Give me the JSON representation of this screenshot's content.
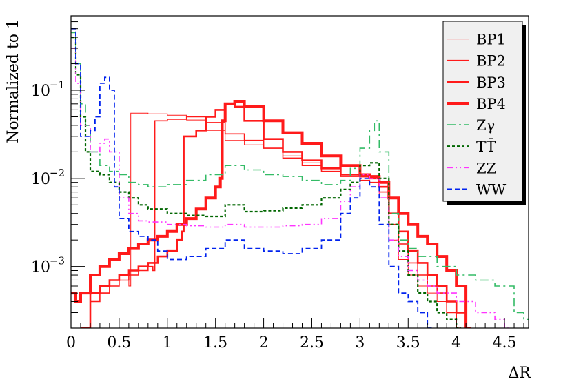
{
  "chart_data": {
    "type": "line",
    "title": "",
    "xlabel": "ΔR",
    "ylabel": "Normalized to 1",
    "x_range": [
      0,
      4.75
    ],
    "y_range": [
      0.0002,
      0.7
    ],
    "y_scale": "log",
    "grid": false,
    "legend_position": "top-right",
    "x_ticks": [
      {
        "value": 0,
        "label": "0"
      },
      {
        "value": 0.5,
        "label": "0.5"
      },
      {
        "value": 1,
        "label": "1"
      },
      {
        "value": 1.5,
        "label": "1.5"
      },
      {
        "value": 2,
        "label": "2"
      },
      {
        "value": 2.5,
        "label": "2.5"
      },
      {
        "value": 3,
        "label": "3"
      },
      {
        "value": 3.5,
        "label": "3.5"
      },
      {
        "value": 4,
        "label": "4"
      },
      {
        "value": 4.5,
        "label": "4.5"
      }
    ],
    "y_ticks": [
      {
        "value": 0.001,
        "base": "10",
        "exp": "−3"
      },
      {
        "value": 0.01,
        "base": "10",
        "exp": "−2"
      },
      {
        "value": 0.1,
        "base": "10",
        "exp": "−1"
      }
    ],
    "series": [
      {
        "name": "BP1",
        "color": "#ff1a1a",
        "width": 1,
        "dash": "",
        "points": [
          [
            0.1,
            0.0002
          ],
          [
            0.2,
            0.0004
          ],
          [
            0.3,
            0.0005
          ],
          [
            0.4,
            0.0006
          ],
          [
            0.5,
            0.0007
          ],
          [
            0.6,
            0.0006
          ],
          [
            0.62,
            0.055
          ],
          [
            0.8,
            0.054
          ],
          [
            1.0,
            0.052
          ],
          [
            1.2,
            0.046
          ],
          [
            1.4,
            0.035
          ],
          [
            1.6,
            0.027
          ],
          [
            1.8,
            0.024
          ],
          [
            2.0,
            0.022
          ],
          [
            2.2,
            0.018
          ],
          [
            2.4,
            0.015
          ],
          [
            2.6,
            0.013
          ],
          [
            2.8,
            0.011
          ],
          [
            3.0,
            0.0095
          ],
          [
            3.1,
            0.009
          ],
          [
            3.2,
            0.006
          ],
          [
            3.3,
            0.002
          ],
          [
            3.4,
            0.0012
          ],
          [
            3.5,
            0.0008
          ],
          [
            3.6,
            0.0006
          ],
          [
            3.7,
            0.0005
          ],
          [
            3.8,
            0.0004
          ],
          [
            3.9,
            0.0003
          ],
          [
            4.0,
            0.0002
          ]
        ]
      },
      {
        "name": "BP2",
        "color": "#ff1a1a",
        "width": 1.6,
        "dash": "",
        "points": [
          [
            0.1,
            0.0002
          ],
          [
            0.2,
            0.0004
          ],
          [
            0.3,
            0.0005
          ],
          [
            0.4,
            0.0006
          ],
          [
            0.5,
            0.0007
          ],
          [
            0.6,
            0.0008
          ],
          [
            0.7,
            0.0009
          ],
          [
            0.8,
            0.001
          ],
          [
            0.85,
            0.0009
          ],
          [
            0.87,
            0.045
          ],
          [
            1.0,
            0.047
          ],
          [
            1.2,
            0.05
          ],
          [
            1.4,
            0.043
          ],
          [
            1.6,
            0.032
          ],
          [
            1.8,
            0.027
          ],
          [
            2.0,
            0.022
          ],
          [
            2.2,
            0.017
          ],
          [
            2.4,
            0.014
          ],
          [
            2.6,
            0.012
          ],
          [
            2.8,
            0.0105
          ],
          [
            3.0,
            0.0095
          ],
          [
            3.1,
            0.009
          ],
          [
            3.2,
            0.007
          ],
          [
            3.3,
            0.003
          ],
          [
            3.4,
            0.0018
          ],
          [
            3.5,
            0.0011
          ],
          [
            3.6,
            0.0008
          ],
          [
            3.7,
            0.0006
          ],
          [
            3.8,
            0.0005
          ],
          [
            3.9,
            0.0003
          ],
          [
            4.0,
            0.0002
          ]
        ]
      },
      {
        "name": "BP3",
        "color": "#ff1a1a",
        "width": 2.6,
        "dash": "",
        "points": [
          [
            0.1,
            0.0002
          ],
          [
            0.2,
            0.0005
          ],
          [
            0.3,
            0.0006
          ],
          [
            0.4,
            0.0007
          ],
          [
            0.5,
            0.0008
          ],
          [
            0.6,
            0.0009
          ],
          [
            0.7,
            0.001
          ],
          [
            0.8,
            0.0011
          ],
          [
            0.9,
            0.0013
          ],
          [
            1.0,
            0.0015
          ],
          [
            1.1,
            0.002
          ],
          [
            1.15,
            0.0025
          ],
          [
            1.17,
            0.03
          ],
          [
            1.3,
            0.035
          ],
          [
            1.4,
            0.05
          ],
          [
            1.5,
            0.06
          ],
          [
            1.6,
            0.07
          ],
          [
            1.7,
            0.065
          ],
          [
            1.8,
            0.045
          ],
          [
            2.0,
            0.028
          ],
          [
            2.2,
            0.02
          ],
          [
            2.4,
            0.016
          ],
          [
            2.6,
            0.013
          ],
          [
            2.8,
            0.011
          ],
          [
            3.0,
            0.0105
          ],
          [
            3.1,
            0.01
          ],
          [
            3.2,
            0.008
          ],
          [
            3.3,
            0.004
          ],
          [
            3.4,
            0.0025
          ],
          [
            3.5,
            0.0015
          ],
          [
            3.6,
            0.0011
          ],
          [
            3.7,
            0.0008
          ],
          [
            3.8,
            0.0006
          ],
          [
            3.9,
            0.0004
          ],
          [
            4.0,
            0.0003
          ],
          [
            4.1,
            0.0002
          ]
        ]
      },
      {
        "name": "BP4",
        "color": "#ff1a1a",
        "width": 4,
        "dash": "",
        "points": [
          [
            0,
            0.0005
          ],
          [
            0.05,
            0.0004
          ],
          [
            0.1,
            0.0005
          ],
          [
            0.2,
            0.0008
          ],
          [
            0.3,
            0.001
          ],
          [
            0.4,
            0.0012
          ],
          [
            0.5,
            0.0014
          ],
          [
            0.6,
            0.0016
          ],
          [
            0.7,
            0.0018
          ],
          [
            0.8,
            0.002
          ],
          [
            0.9,
            0.0022
          ],
          [
            1.0,
            0.0025
          ],
          [
            1.1,
            0.003
          ],
          [
            1.2,
            0.0035
          ],
          [
            1.3,
            0.0045
          ],
          [
            1.4,
            0.006
          ],
          [
            1.5,
            0.008
          ],
          [
            1.55,
            0.01
          ],
          [
            1.57,
            0.045
          ],
          [
            1.6,
            0.07
          ],
          [
            1.7,
            0.075
          ],
          [
            1.8,
            0.065
          ],
          [
            2.0,
            0.045
          ],
          [
            2.2,
            0.033
          ],
          [
            2.4,
            0.025
          ],
          [
            2.6,
            0.018
          ],
          [
            2.8,
            0.014
          ],
          [
            3.0,
            0.011
          ],
          [
            3.1,
            0.0105
          ],
          [
            3.2,
            0.009
          ],
          [
            3.3,
            0.006
          ],
          [
            3.4,
            0.004
          ],
          [
            3.5,
            0.003
          ],
          [
            3.6,
            0.0022
          ],
          [
            3.7,
            0.0018
          ],
          [
            3.8,
            0.0013
          ],
          [
            3.9,
            0.0009
          ],
          [
            4.0,
            0.0006
          ],
          [
            4.1,
            0.0002
          ]
        ]
      },
      {
        "name": "Zγ",
        "color": "#33bb66",
        "width": 1.6,
        "dash": "12,5,3,5",
        "points": [
          [
            0,
            0.45
          ],
          [
            0.05,
            0.2
          ],
          [
            0.1,
            0.07
          ],
          [
            0.15,
            0.04
          ],
          [
            0.2,
            0.02
          ],
          [
            0.3,
            0.014
          ],
          [
            0.4,
            0.012
          ],
          [
            0.5,
            0.011
          ],
          [
            0.6,
            0.009
          ],
          [
            0.7,
            0.0085
          ],
          [
            0.8,
            0.008
          ],
          [
            1.0,
            0.0085
          ],
          [
            1.2,
            0.0095
          ],
          [
            1.4,
            0.011
          ],
          [
            1.6,
            0.014
          ],
          [
            1.8,
            0.0125
          ],
          [
            2.0,
            0.011
          ],
          [
            2.2,
            0.0105
          ],
          [
            2.4,
            0.0095
          ],
          [
            2.6,
            0.0085
          ],
          [
            2.8,
            0.0095
          ],
          [
            2.9,
            0.013
          ],
          [
            3.0,
            0.022
          ],
          [
            3.1,
            0.035
          ],
          [
            3.15,
            0.045
          ],
          [
            3.2,
            0.02
          ],
          [
            3.3,
            0.004
          ],
          [
            3.4,
            0.002
          ],
          [
            3.5,
            0.0016
          ],
          [
            3.6,
            0.0013
          ],
          [
            3.8,
            0.001
          ],
          [
            4.0,
            0.0008
          ],
          [
            4.2,
            0.0007
          ],
          [
            4.4,
            0.0006
          ],
          [
            4.6,
            0.0003
          ],
          [
            4.7,
            0.00025
          ]
        ]
      },
      {
        "name": "TT̄",
        "color": "#006600",
        "width": 2.2,
        "dash": "4,3",
        "points": [
          [
            0,
            0.4
          ],
          [
            0.05,
            0.15
          ],
          [
            0.1,
            0.05
          ],
          [
            0.15,
            0.02
          ],
          [
            0.2,
            0.012
          ],
          [
            0.3,
            0.011
          ],
          [
            0.4,
            0.009
          ],
          [
            0.5,
            0.007
          ],
          [
            0.6,
            0.006
          ],
          [
            0.7,
            0.005
          ],
          [
            0.8,
            0.0045
          ],
          [
            1.0,
            0.004
          ],
          [
            1.2,
            0.0038
          ],
          [
            1.4,
            0.0037
          ],
          [
            1.6,
            0.005
          ],
          [
            1.8,
            0.0042
          ],
          [
            2.0,
            0.0043
          ],
          [
            2.2,
            0.0046
          ],
          [
            2.4,
            0.005
          ],
          [
            2.6,
            0.006
          ],
          [
            2.8,
            0.0075
          ],
          [
            2.9,
            0.009
          ],
          [
            3.0,
            0.014
          ],
          [
            3.1,
            0.015
          ],
          [
            3.2,
            0.01
          ],
          [
            3.3,
            0.003
          ],
          [
            3.4,
            0.0015
          ],
          [
            3.5,
            0.0008
          ],
          [
            3.6,
            0.0005
          ],
          [
            3.7,
            0.0004
          ],
          [
            3.8,
            0.0003
          ],
          [
            3.9,
            0.00025
          ],
          [
            4.0,
            0.0002
          ]
        ]
      },
      {
        "name": "ZZ",
        "color": "#ff33ff",
        "width": 1.6,
        "dash": "8,4,2,4,2,4",
        "points": [
          [
            0,
            0.3
          ],
          [
            0.05,
            0.12
          ],
          [
            0.1,
            0.04
          ],
          [
            0.2,
            0.02
          ],
          [
            0.3,
            0.025
          ],
          [
            0.35,
            0.028
          ],
          [
            0.4,
            0.02
          ],
          [
            0.5,
            0.006
          ],
          [
            0.6,
            0.004
          ],
          [
            0.7,
            0.0033
          ],
          [
            0.8,
            0.0032
          ],
          [
            1.0,
            0.003
          ],
          [
            1.2,
            0.0029
          ],
          [
            1.4,
            0.0028
          ],
          [
            1.6,
            0.003
          ],
          [
            1.8,
            0.0028
          ],
          [
            2.0,
            0.0028
          ],
          [
            2.2,
            0.0029
          ],
          [
            2.4,
            0.003
          ],
          [
            2.6,
            0.0035
          ],
          [
            2.8,
            0.0055
          ],
          [
            2.9,
            0.008
          ],
          [
            3.0,
            0.011
          ],
          [
            3.1,
            0.01
          ],
          [
            3.2,
            0.006
          ],
          [
            3.3,
            0.002
          ],
          [
            3.4,
            0.0013
          ],
          [
            3.5,
            0.0009
          ],
          [
            3.6,
            0.0007
          ],
          [
            3.7,
            0.0006
          ],
          [
            3.8,
            0.0005
          ],
          [
            4.0,
            0.0004
          ],
          [
            4.2,
            0.0003
          ],
          [
            4.4,
            0.00025
          ],
          [
            4.5,
            0.0002
          ]
        ]
      },
      {
        "name": "WW",
        "color": "#0022ee",
        "width": 1.8,
        "dash": "7,4",
        "points": [
          [
            0,
            0.5
          ],
          [
            0.05,
            0.2
          ],
          [
            0.1,
            0.03
          ],
          [
            0.15,
            0.03
          ],
          [
            0.2,
            0.035
          ],
          [
            0.25,
            0.05
          ],
          [
            0.3,
            0.12
          ],
          [
            0.35,
            0.14
          ],
          [
            0.4,
            0.1
          ],
          [
            0.45,
            0.008
          ],
          [
            0.5,
            0.0035
          ],
          [
            0.6,
            0.0025
          ],
          [
            0.7,
            0.0022
          ],
          [
            0.8,
            0.002
          ],
          [
            0.9,
            0.0015
          ],
          [
            1.0,
            0.0012
          ],
          [
            1.2,
            0.0013
          ],
          [
            1.4,
            0.0016
          ],
          [
            1.6,
            0.002
          ],
          [
            1.8,
            0.0016
          ],
          [
            2.0,
            0.0015
          ],
          [
            2.2,
            0.0014
          ],
          [
            2.4,
            0.0016
          ],
          [
            2.6,
            0.002
          ],
          [
            2.8,
            0.004
          ],
          [
            2.9,
            0.006
          ],
          [
            3.0,
            0.01
          ],
          [
            3.1,
            0.008
          ],
          [
            3.2,
            0.003
          ],
          [
            3.3,
            0.001
          ],
          [
            3.4,
            0.0005
          ],
          [
            3.5,
            0.0004
          ],
          [
            3.6,
            0.0003
          ],
          [
            3.7,
            0.0002
          ]
        ]
      }
    ]
  }
}
